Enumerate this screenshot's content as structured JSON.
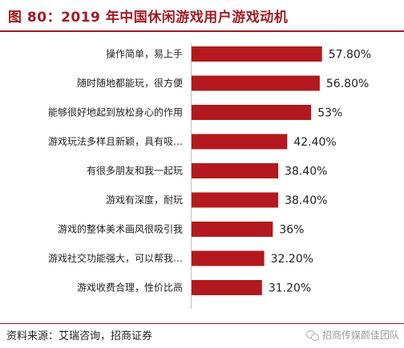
{
  "title": "图 80：2019 年中国休闲游戏用户游戏动机",
  "source": "资料来源：艾瑞咨询，招商证券",
  "watermark": "招商传媒颜佳团队",
  "colors": {
    "bar": "#b3191e",
    "title": "#a11b22"
  },
  "chart_data": {
    "type": "bar",
    "orientation": "horizontal",
    "title": "",
    "xlabel": "",
    "ylabel": "",
    "xlim": [
      0,
      60
    ],
    "grid": false,
    "categories": [
      "操作简单，易上手",
      "随时随地都能玩，很方便",
      "能够很好地起到放松身心的作用",
      "游戏玩法多样且新颖，具有吸…",
      "有很多朋友和我一起玩",
      "游戏有深度，耐玩",
      "游戏的整体美术画风很吸引我",
      "游戏社交功能强大，可以帮我…",
      "游戏收费合理，性价比高"
    ],
    "values": [
      57.8,
      56.8,
      53,
      42.4,
      38.4,
      38.4,
      36,
      32.2,
      31.2
    ],
    "value_labels": [
      "57.80%",
      "56.80%",
      "53%",
      "42.40%",
      "38.40%",
      "38.40%",
      "36%",
      "32.20%",
      "31.20%"
    ]
  }
}
